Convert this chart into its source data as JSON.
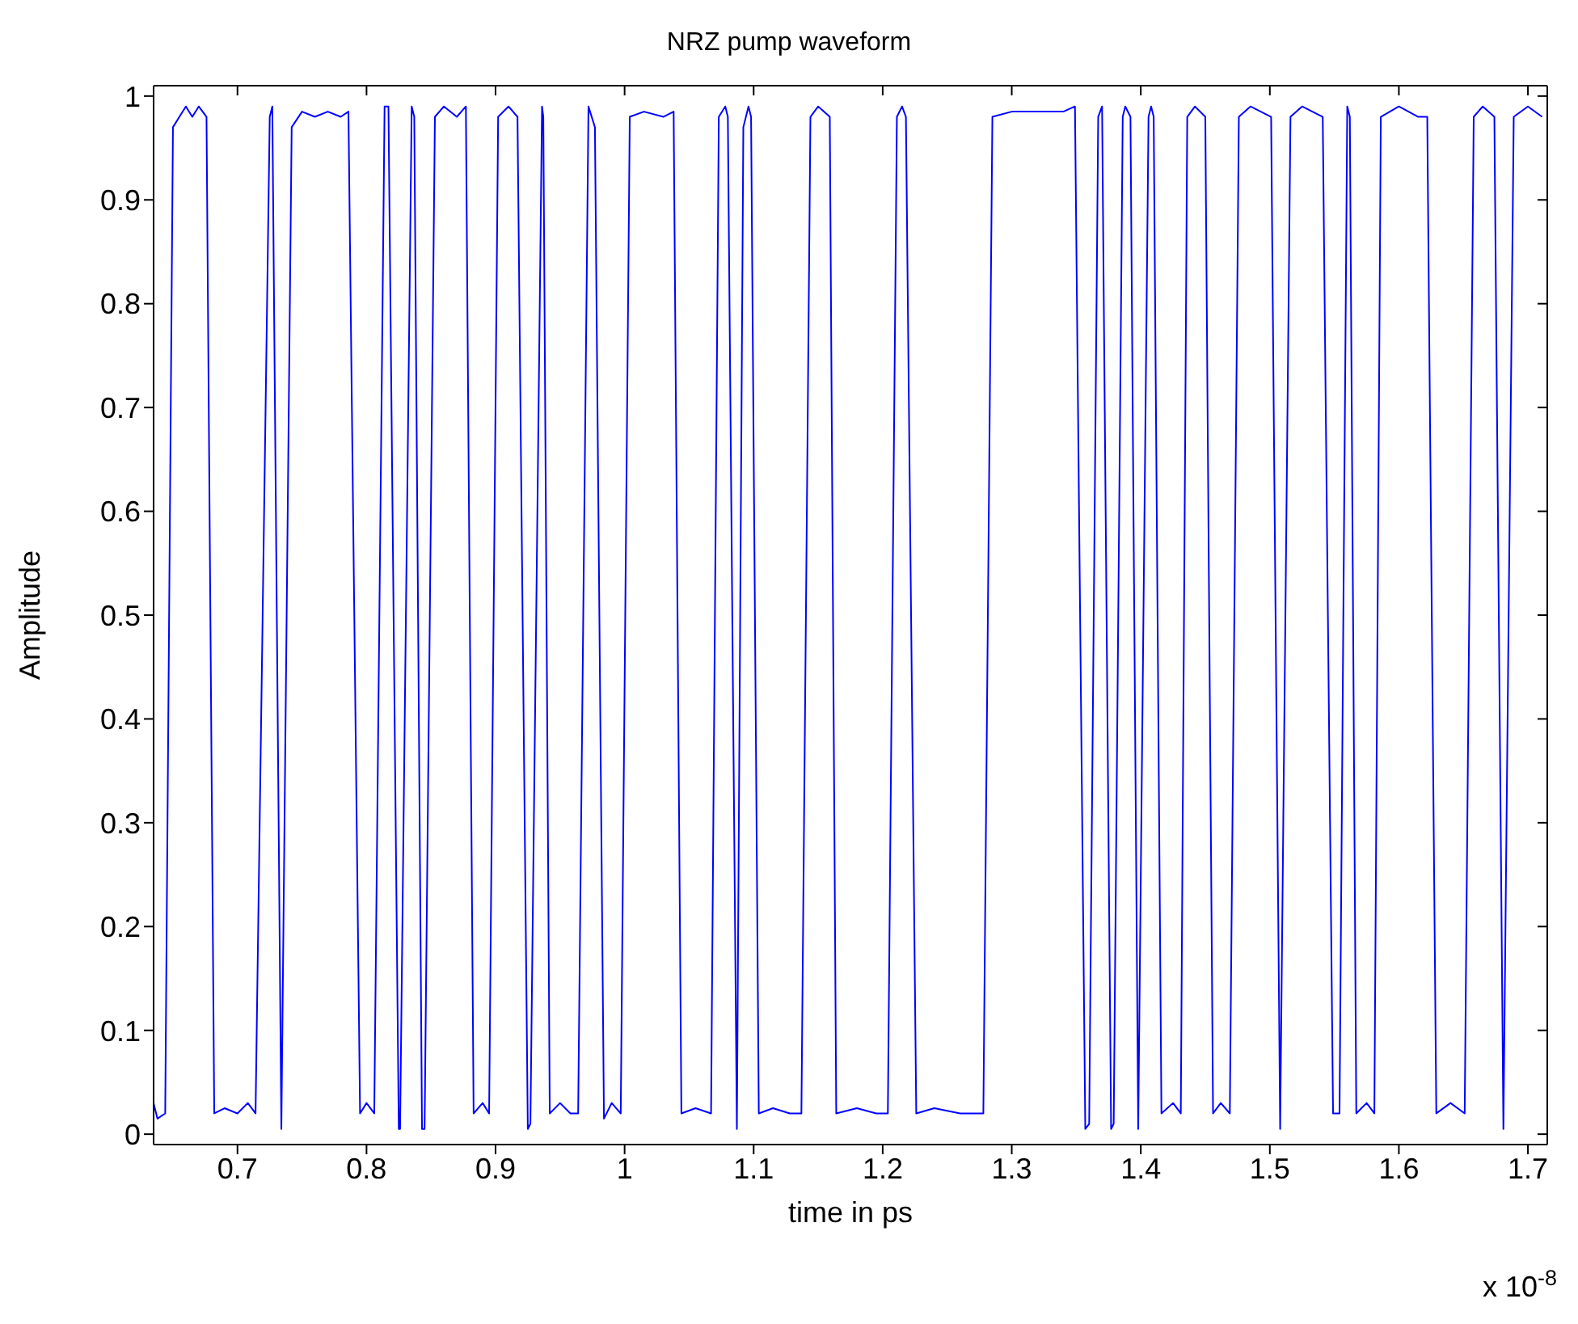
{
  "chart_data": {
    "type": "line",
    "title": "NRZ pump waveform",
    "xlabel": "time in ps",
    "ylabel": "Amplitude",
    "annotations": [
      "x 10$^{-8}$"
    ],
    "xlim": [
      0.635,
      1.715
    ],
    "xticks": [
      0.7,
      0.8,
      0.9,
      1,
      1.1,
      1.2,
      1.3,
      1.4,
      1.5,
      1.6,
      1.7
    ],
    "ylim": [
      -0.01,
      1.01
    ],
    "yticks": [
      0,
      0.1,
      0.2,
      0.3,
      0.4,
      0.5,
      0.6,
      0.7,
      0.8,
      0.9,
      1
    ],
    "grid": false,
    "legend": false,
    "marker": "none",
    "line_style": "solid",
    "x": [
      0.635,
      0.638,
      0.644,
      0.65,
      0.655,
      0.66,
      0.665,
      0.67,
      0.676,
      0.682,
      0.69,
      0.7,
      0.708,
      0.714,
      0.725,
      0.727,
      0.734,
      0.742,
      0.75,
      0.76,
      0.77,
      0.78,
      0.786,
      0.795,
      0.8,
      0.806,
      0.814,
      0.817,
      0.825,
      0.826,
      0.835,
      0.837,
      0.843,
      0.845,
      0.853,
      0.86,
      0.87,
      0.877,
      0.883,
      0.89,
      0.895,
      0.902,
      0.91,
      0.917,
      0.925,
      0.927,
      0.936,
      0.937,
      0.942,
      0.95,
      0.958,
      0.964,
      0.972,
      0.977,
      0.984,
      0.99,
      0.997,
      1.004,
      1.015,
      1.03,
      1.038,
      1.044,
      1.055,
      1.067,
      1.073,
      1.078,
      1.08,
      1.087,
      1.092,
      1.096,
      1.098,
      1.104,
      1.115,
      1.128,
      1.137,
      1.144,
      1.15,
      1.159,
      1.164,
      1.18,
      1.195,
      1.204,
      1.211,
      1.215,
      1.218,
      1.226,
      1.24,
      1.26,
      1.278,
      1.285,
      1.3,
      1.32,
      1.34,
      1.349,
      1.357,
      1.36,
      1.367,
      1.37,
      1.377,
      1.379,
      1.386,
      1.388,
      1.392,
      1.398,
      1.406,
      1.408,
      1.41,
      1.416,
      1.425,
      1.431,
      1.436,
      1.442,
      1.45,
      1.456,
      1.462,
      1.469,
      1.476,
      1.485,
      1.501,
      1.508,
      1.516,
      1.525,
      1.541,
      1.549,
      1.554,
      1.56,
      1.562,
      1.567,
      1.575,
      1.581,
      1.586,
      1.6,
      1.615,
      1.622,
      1.629,
      1.64,
      1.651,
      1.658,
      1.665,
      1.674,
      1.681,
      1.689,
      1.7,
      1.711
    ],
    "series": [
      {
        "color": "#0000ff",
        "values": [
          0.03,
          0.015,
          0.02,
          0.97,
          0.98,
          0.99,
          0.98,
          0.99,
          0.98,
          0.02,
          0.025,
          0.02,
          0.03,
          0.02,
          0.98,
          0.99,
          0.005,
          0.97,
          0.985,
          0.98,
          0.985,
          0.98,
          0.985,
          0.02,
          0.03,
          0.02,
          0.99,
          0.99,
          0.005,
          0.005,
          0.99,
          0.98,
          0.005,
          0.005,
          0.98,
          0.99,
          0.98,
          0.99,
          0.02,
          0.03,
          0.02,
          0.98,
          0.99,
          0.98,
          0.005,
          0.01,
          0.99,
          0.98,
          0.02,
          0.03,
          0.02,
          0.02,
          0.99,
          0.97,
          0.015,
          0.03,
          0.02,
          0.98,
          0.985,
          0.98,
          0.985,
          0.02,
          0.025,
          0.02,
          0.98,
          0.99,
          0.98,
          0.005,
          0.97,
          0.99,
          0.98,
          0.02,
          0.025,
          0.02,
          0.02,
          0.98,
          0.99,
          0.98,
          0.02,
          0.025,
          0.02,
          0.02,
          0.98,
          0.99,
          0.98,
          0.02,
          0.025,
          0.02,
          0.02,
          0.98,
          0.985,
          0.985,
          0.985,
          0.99,
          0.005,
          0.01,
          0.98,
          0.99,
          0.005,
          0.01,
          0.98,
          0.99,
          0.98,
          0.005,
          0.98,
          0.99,
          0.98,
          0.02,
          0.03,
          0.02,
          0.98,
          0.99,
          0.98,
          0.02,
          0.03,
          0.02,
          0.98,
          0.99,
          0.98,
          0.005,
          0.98,
          0.99,
          0.98,
          0.02,
          0.02,
          0.99,
          0.98,
          0.02,
          0.03,
          0.02,
          0.98,
          0.99,
          0.98,
          0.98,
          0.02,
          0.03,
          0.02,
          0.98,
          0.99,
          0.98,
          0.005,
          0.98,
          0.99,
          0.98
        ]
      }
    ]
  }
}
